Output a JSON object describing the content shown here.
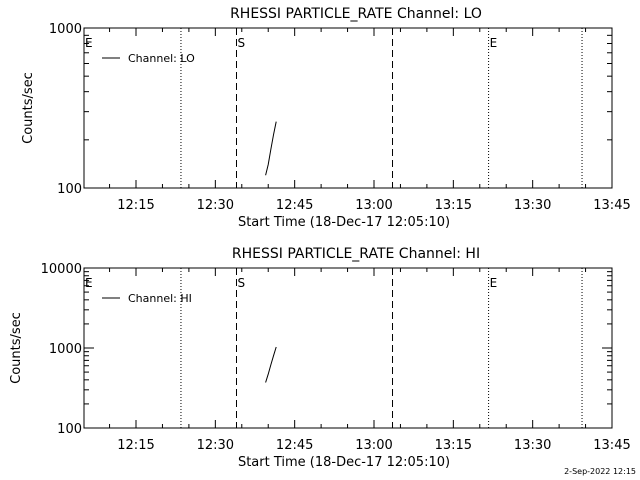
{
  "chart_data": [
    {
      "type": "line",
      "title": "RHESSI PARTICLE_RATE Channel: LO",
      "xlabel": "Start Time (18-Dec-17 12:05:10)",
      "ylabel": "Counts/sec",
      "xlim": [
        "12:05:10",
        "13:45:00"
      ],
      "ylim": [
        100,
        1000
      ],
      "yscale": "log",
      "x_tick_labels": [
        "12:15",
        "12:30",
        "12:45",
        "13:00",
        "13:15",
        "13:30",
        "13:45"
      ],
      "y_tick_labels": [
        "100",
        "1000"
      ],
      "legend": {
        "entries": [
          "Channel: LO"
        ],
        "position": "top-left"
      },
      "series": [
        {
          "name": "Channel: LO",
          "x": [
            "12:39:30",
            "12:40:00",
            "12:40:30",
            "12:41:00",
            "12:41:30"
          ],
          "y": [
            120,
            140,
            175,
            215,
            260
          ]
        }
      ],
      "markers": [
        {
          "label": "E",
          "time": "12:05:10",
          "style": "none"
        },
        {
          "label": "",
          "time": "12:23:30",
          "style": "dotted"
        },
        {
          "label": "S",
          "time": "12:34:00",
          "style": "dashed"
        },
        {
          "label": "",
          "time": "13:03:30",
          "style": "dashed"
        },
        {
          "label": "E",
          "time": "13:21:40",
          "style": "dotted"
        },
        {
          "label": "",
          "time": "13:39:20",
          "style": "dotted"
        }
      ]
    },
    {
      "type": "line",
      "title": "RHESSI PARTICLE_RATE Channel: HI",
      "xlabel": "Start Time (18-Dec-17 12:05:10)",
      "ylabel": "Counts/sec",
      "xlim": [
        "12:05:10",
        "13:45:00"
      ],
      "ylim": [
        100,
        10000
      ],
      "yscale": "log",
      "x_tick_labels": [
        "12:15",
        "12:30",
        "12:45",
        "13:00",
        "13:15",
        "13:30",
        "13:45"
      ],
      "y_tick_labels": [
        "100",
        "1000",
        "10000"
      ],
      "legend": {
        "entries": [
          "Channel: HI"
        ],
        "position": "top-left"
      },
      "series": [
        {
          "name": "Channel: HI",
          "x": [
            "12:39:30",
            "12:40:00",
            "12:40:30",
            "12:41:00",
            "12:41:30"
          ],
          "y": [
            370,
            470,
            620,
            800,
            1030
          ]
        }
      ],
      "markers": [
        {
          "label": "E",
          "time": "12:05:10",
          "style": "none"
        },
        {
          "label": "",
          "time": "12:23:30",
          "style": "dotted"
        },
        {
          "label": "S",
          "time": "12:34:00",
          "style": "dashed"
        },
        {
          "label": "",
          "time": "13:03:30",
          "style": "dashed"
        },
        {
          "label": "E",
          "time": "13:21:40",
          "style": "dotted"
        },
        {
          "label": "",
          "time": "13:39:20",
          "style": "dotted"
        }
      ]
    }
  ],
  "footer": {
    "timestamp": "2-Sep-2022 12:15"
  }
}
